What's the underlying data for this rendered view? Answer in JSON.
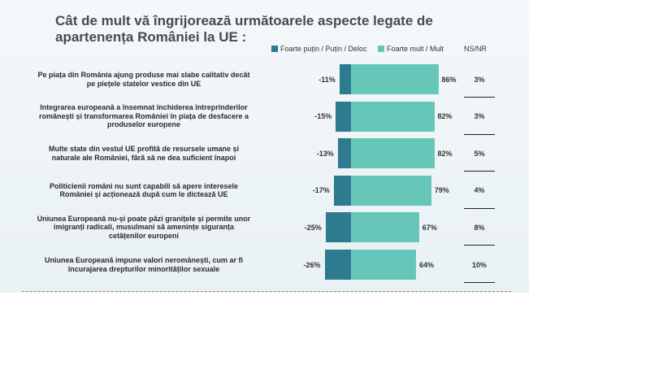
{
  "title": "Cât de mult vă îngrijorează următoarele aspecte legate de apartenența României la UE :",
  "colors": {
    "negative": "#2e7a8e",
    "positive": "#66c6b8",
    "background": "#eef4f7"
  },
  "chart_data": {
    "type": "bar",
    "orientation": "horizontal-diverging",
    "title": "Cât de mult vă îngrijorează următoarele aspecte legate de apartenența României la UE :",
    "legend": [
      "Foarte puțin / Puțin / Deloc",
      "Foarte mult / Mult"
    ],
    "legend_position": "top",
    "nsnr_header": "NS/NR",
    "categories": [
      "Pe piața din România ajung produse mai slabe calitativ decât pe piețele statelor vestice din UE",
      "Integrarea europeană a însemnat închiderea întreprinderilor românești și transformarea României în piața de desfacere a produselor europene",
      "Multe state din vestul UE profită de resursele umane și naturale ale României, fără să ne dea suficient înapoi",
      "Politicienii români nu sunt capabili să apere interesele României și acționează după cum le dictează UE",
      "Uniunea Europeană nu-și poate păzi granițele și permite unor imigranți radicali, musulmani să amenințe siguranța cetățenilor europeni",
      "Uniunea Europeană impune valori neromânești, cum ar fi încurajarea drepturilor minorităților sexuale"
    ],
    "series": [
      {
        "name": "Foarte puțin / Puțin / Deloc",
        "values": [
          -11,
          -15,
          -13,
          -17,
          -25,
          -26
        ],
        "labels": [
          "-11%",
          "-15%",
          "-13%",
          "-17%",
          "-25%",
          "-26%"
        ]
      },
      {
        "name": "Foarte mult / Mult",
        "values": [
          86,
          82,
          82,
          79,
          67,
          64
        ],
        "labels": [
          "86%",
          "82%",
          "82%",
          "79%",
          "67%",
          "64%"
        ]
      },
      {
        "name": "NS/NR",
        "values": [
          3,
          3,
          5,
          4,
          8,
          10
        ],
        "labels": [
          "3%",
          "3%",
          "5%",
          "4%",
          "8%",
          "10%"
        ]
      }
    ]
  }
}
